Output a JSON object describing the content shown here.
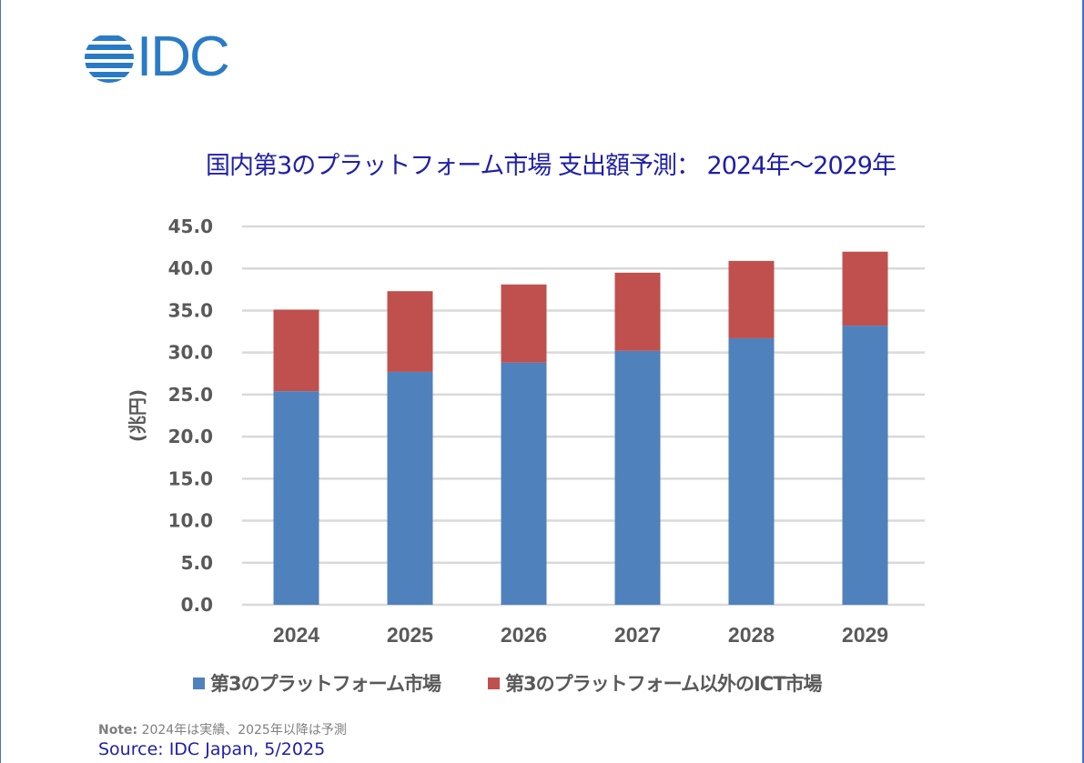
{
  "logo": {
    "text": "IDC",
    "color": "#2a7bc6"
  },
  "title": "国内第3のプラットフォーム市場 支出額予測： 2024年～2029年",
  "chart_data": {
    "type": "bar",
    "stacked": true,
    "title": "国内第3のプラットフォーム市場 支出額予測： 2024年～2029年",
    "xlabel": "",
    "ylabel": "(兆円)",
    "categories": [
      "2024",
      "2025",
      "2026",
      "2027",
      "2028",
      "2029"
    ],
    "series": [
      {
        "name": "第3のプラットフォーム市場",
        "color": "#4f81bd",
        "values": [
          25.4,
          27.7,
          28.8,
          30.2,
          31.7,
          33.2
        ]
      },
      {
        "name": "第3のプラットフォーム以外のICT市場",
        "color": "#c0504d",
        "values": [
          9.7,
          9.6,
          9.3,
          9.3,
          9.2,
          8.8
        ]
      }
    ],
    "totals": [
      35.1,
      37.3,
      38.1,
      39.5,
      40.9,
      42.0
    ],
    "ylim": [
      0,
      45
    ],
    "yticks": [
      "0.0",
      "5.0",
      "10.0",
      "15.0",
      "20.0",
      "25.0",
      "30.0",
      "35.0",
      "40.0",
      "45.0"
    ],
    "grid": true,
    "legend": "bottom"
  },
  "note": {
    "label": "Note:",
    "text": " 2024年は実績、2025年以降は予測"
  },
  "source": "Source: IDC Japan, 5/2025"
}
